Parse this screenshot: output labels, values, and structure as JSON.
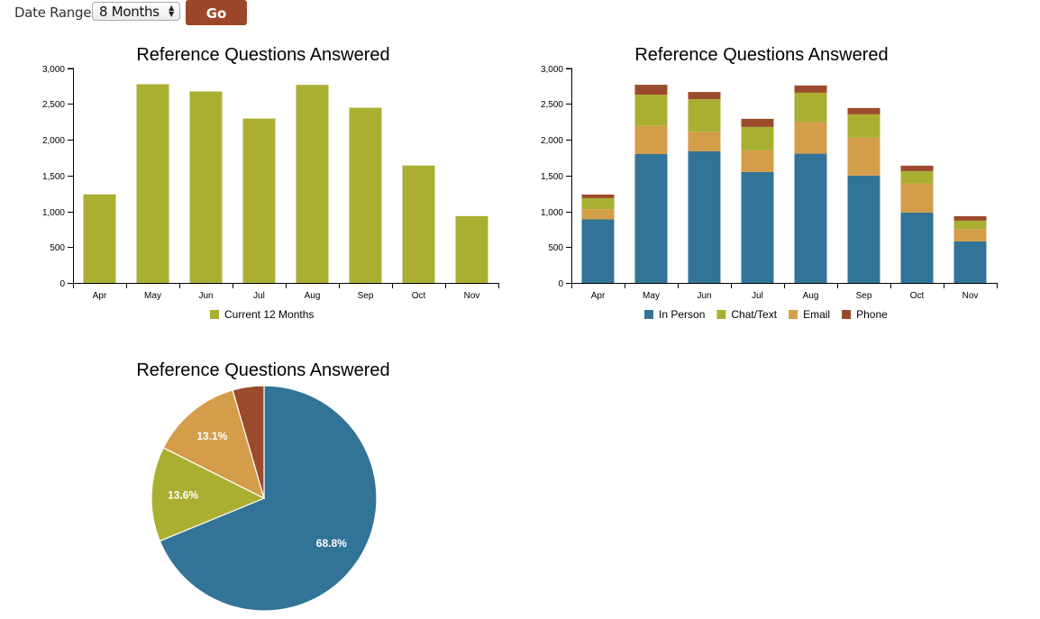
{
  "toolbar": {
    "date_range_label": "Date Range",
    "date_range_value": "8 Months",
    "go_label": "Go"
  },
  "colors": {
    "in_person": "#327497",
    "chat_text": "#aaaf32",
    "email": "#d49d4a",
    "phone": "#9b4a2c",
    "go_button": "#9d472a"
  },
  "chart_data": [
    {
      "type": "bar",
      "title": "Reference Questions Answered",
      "categories": [
        "Apr",
        "May",
        "Jun",
        "Jul",
        "Aug",
        "Sep",
        "Oct",
        "Nov"
      ],
      "series": [
        {
          "name": "Current 12 Months",
          "color": "#aaaf32",
          "values": [
            1236,
            2774,
            2673,
            2295,
            2765,
            2446,
            1639,
            933
          ]
        }
      ],
      "xlabel": "",
      "ylabel": "",
      "ylim": [
        0,
        3000
      ],
      "yticks": [
        0,
        500,
        1000,
        1500,
        2000,
        2500,
        3000
      ],
      "ytick_labels": [
        "0",
        "500",
        "1,000",
        "1,500",
        "2,000",
        "2,500",
        "3,000"
      ],
      "grid": false,
      "legend": "bottom"
    },
    {
      "type": "bar",
      "stacked": true,
      "title": "Reference Questions Answered",
      "categories": [
        "Apr",
        "May",
        "Jun",
        "Jul",
        "Aug",
        "Sep",
        "Oct",
        "Nov"
      ],
      "series": [
        {
          "name": "In Person",
          "color": "#327497",
          "values": [
            887,
            1799,
            1837,
            1549,
            1804,
            1498,
            982,
            579
          ]
        },
        {
          "name": "Email",
          "color": "#d49d4a",
          "values": [
            142,
            393,
            272,
            302,
            441,
            529,
            407,
            173
          ]
        },
        {
          "name": "Chat/Text",
          "color": "#aaaf32",
          "values": [
            155,
            436,
            456,
            327,
            411,
            327,
            172,
            117
          ]
        },
        {
          "name": "Phone",
          "color": "#9b4a2c",
          "values": [
            50,
            138,
            100,
            113,
            101,
            88,
            76,
            63
          ]
        }
      ],
      "legend_order": [
        "In Person",
        "Chat/Text",
        "Email",
        "Phone"
      ],
      "xlabel": "",
      "ylabel": "",
      "ylim": [
        0,
        3000
      ],
      "yticks": [
        0,
        500,
        1000,
        1500,
        2000,
        2500,
        3000
      ],
      "ytick_labels": [
        "0",
        "500",
        "1,000",
        "1,500",
        "2,000",
        "2,500",
        "3,000"
      ],
      "grid": false,
      "legend": "bottom"
    },
    {
      "type": "pie",
      "title": "Reference Questions Answered",
      "slices": [
        {
          "name": "In Person",
          "color": "#327497",
          "percent": 68.8,
          "label": "68.8%"
        },
        {
          "name": "Chat/Text",
          "color": "#aaaf32",
          "percent": 13.6,
          "label": "13.6%"
        },
        {
          "name": "Email",
          "color": "#d49d4a",
          "percent": 13.1,
          "label": "13.1%"
        },
        {
          "name": "Phone",
          "color": "#9b4a2c",
          "percent": 4.5,
          "label": ""
        }
      ]
    }
  ]
}
